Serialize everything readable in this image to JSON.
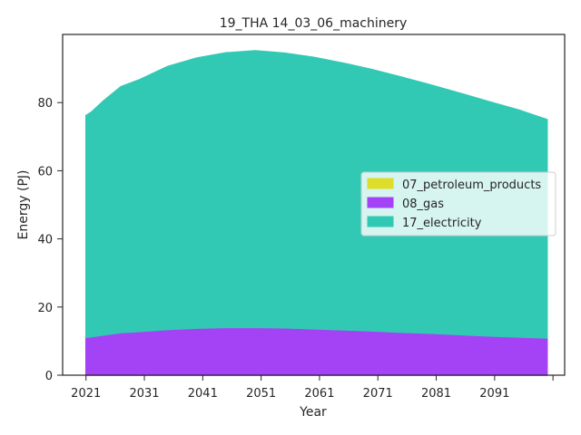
{
  "chart_data": {
    "type": "area",
    "stacked": true,
    "title": "19_THA 14_03_06_machinery",
    "xlabel": "Year",
    "ylabel": "Energy (PJ)",
    "xlim": [
      2017,
      2103
    ],
    "ylim": [
      0,
      100
    ],
    "x_ticks": [
      2021,
      2031,
      2041,
      2051,
      2061,
      2071,
      2081,
      2091,
      2101
    ],
    "x_tick_labels": [
      "2021",
      "2031",
      "2041",
      "2051",
      "2061",
      "2071",
      "2081",
      "2091",
      ""
    ],
    "y_ticks": [
      0,
      20,
      40,
      60,
      80
    ],
    "legend_position": "center-right",
    "x": [
      2021,
      2022,
      2024,
      2027,
      2030,
      2035,
      2040,
      2045,
      2050,
      2055,
      2060,
      2065,
      2070,
      2075,
      2080,
      2085,
      2090,
      2095,
      2100
    ],
    "series": [
      {
        "name": "07_petroleum_products",
        "color": "#dddd2a",
        "values": [
          0,
          0,
          0,
          0,
          0,
          0,
          0,
          0,
          0,
          0,
          0,
          0,
          0,
          0,
          0,
          0,
          0,
          0,
          0
        ]
      },
      {
        "name": "08_gas",
        "color": "#a442f5",
        "values": [
          11.1,
          11.3,
          11.8,
          12.5,
          12.8,
          13.4,
          13.8,
          14.0,
          14.0,
          13.9,
          13.6,
          13.3,
          13.0,
          12.6,
          12.3,
          11.9,
          11.5,
          11.2,
          10.9
        ]
      },
      {
        "name": "17_electricity",
        "color": "#32c9b4",
        "values": [
          65.1,
          66.0,
          68.7,
          72.2,
          73.8,
          77.2,
          79.3,
          80.6,
          81.2,
          80.6,
          79.7,
          78.3,
          76.7,
          74.9,
          72.9,
          70.9,
          68.8,
          66.7,
          64.1
        ]
      }
    ]
  }
}
